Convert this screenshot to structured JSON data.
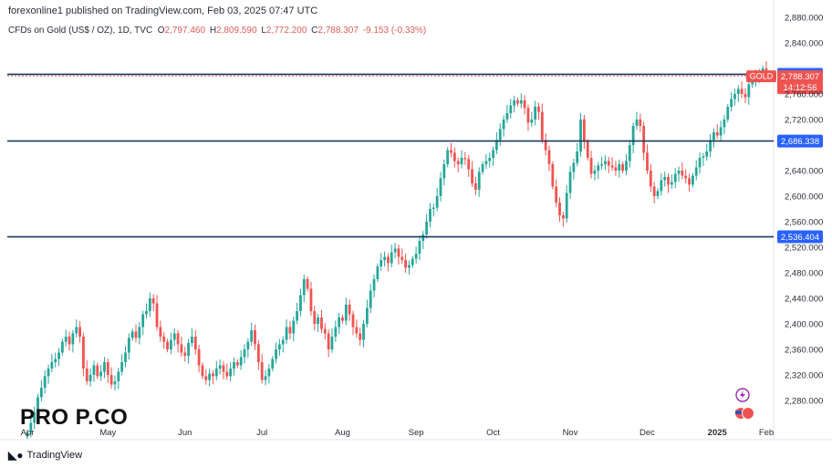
{
  "header": {
    "attribution": "forexonline1 published on TradingView.com, Feb 03, 2025 07:47 UTC"
  },
  "legend": {
    "symbol": "CFDs on Gold (US$ / OZ), 1D, TVC",
    "open_label": "O",
    "open": "2,797.460",
    "high_label": "H",
    "high": "2,809.590",
    "low_label": "L",
    "low": "2,772.200",
    "close_label": "C",
    "close": "2,788.307",
    "change": "-9.153 (-0.33%)"
  },
  "footer": {
    "logo_text": "TradingView",
    "brand_watermark": "PRO P.CO"
  },
  "colors": {
    "up": "#26a69a",
    "down": "#ef5350",
    "level_line": "#1e3a5f",
    "price_tag": "#ef5350",
    "level_tag": "#2962ff"
  },
  "chart_data": {
    "type": "candlestick",
    "instrument": "GOLD",
    "timeframe": "1D",
    "y_range": [
      2240,
      2880
    ],
    "y_ticks": [
      {
        "value": 2280,
        "label": "2,280.000"
      },
      {
        "value": 2320,
        "label": "2,320.000"
      },
      {
        "value": 2360,
        "label": "2,360.000"
      },
      {
        "value": 2400,
        "label": "2,400.000"
      },
      {
        "value": 2440,
        "label": "2,440.000"
      },
      {
        "value": 2480,
        "label": "2,480.000"
      },
      {
        "value": 2520,
        "label": "2,520.000"
      },
      {
        "value": 2560,
        "label": "2,560.000"
      },
      {
        "value": 2600,
        "label": "2,600.000"
      },
      {
        "value": 2640,
        "label": "2,640.000"
      },
      {
        "value": 2720,
        "label": "2,720.000"
      },
      {
        "value": 2760,
        "label": "2,760.000"
      },
      {
        "value": 2840,
        "label": "2,840.000"
      },
      {
        "value": 2880,
        "label": "2,880.000"
      }
    ],
    "x_labels": [
      {
        "label": "Apr",
        "bold": false
      },
      {
        "label": "May",
        "bold": false
      },
      {
        "label": "Jun",
        "bold": false
      },
      {
        "label": "Jul",
        "bold": false
      },
      {
        "label": "Aug",
        "bold": false
      },
      {
        "label": "Sep",
        "bold": false
      },
      {
        "label": "Oct",
        "bold": false
      },
      {
        "label": "Nov",
        "bold": false
      },
      {
        "label": "Dec",
        "bold": false
      },
      {
        "label": "2025",
        "bold": true
      },
      {
        "label": "Feb",
        "bold": false
      }
    ],
    "horizontal_levels": [
      {
        "value": 2790.769,
        "label": "2,790.769"
      },
      {
        "value": 2686.338,
        "label": "2,686.338"
      },
      {
        "value": 2536.404,
        "label": "2,536.404"
      }
    ],
    "last_price": {
      "symbol": "GOLD",
      "value": 2788.307,
      "label": "2,788.307",
      "countdown": "14:12:56"
    },
    "closes": [
      2230,
      2245,
      2262,
      2285,
      2300,
      2318,
      2330,
      2340,
      2345,
      2355,
      2372,
      2380,
      2368,
      2385,
      2395,
      2380,
      2330,
      2310,
      2320,
      2335,
      2318,
      2325,
      2340,
      2320,
      2305,
      2310,
      2325,
      2340,
      2355,
      2378,
      2388,
      2378,
      2395,
      2415,
      2420,
      2440,
      2432,
      2395,
      2380,
      2372,
      2360,
      2375,
      2385,
      2368,
      2355,
      2350,
      2370,
      2380,
      2360,
      2335,
      2318,
      2312,
      2322,
      2318,
      2330,
      2335,
      2325,
      2318,
      2330,
      2340,
      2335,
      2348,
      2360,
      2372,
      2390,
      2368,
      2340,
      2312,
      2318,
      2330,
      2345,
      2360,
      2368,
      2375,
      2395,
      2385,
      2405,
      2420,
      2445,
      2470,
      2455,
      2420,
      2400,
      2410,
      2392,
      2385,
      2360,
      2380,
      2395,
      2410,
      2405,
      2430,
      2415,
      2395,
      2385,
      2375,
      2400,
      2425,
      2452,
      2470,
      2490,
      2500,
      2505,
      2495,
      2512,
      2518,
      2505,
      2500,
      2488,
      2492,
      2502,
      2510,
      2530,
      2540,
      2560,
      2580,
      2582,
      2600,
      2628,
      2650,
      2672,
      2668,
      2655,
      2650,
      2660,
      2658,
      2642,
      2620,
      2610,
      2638,
      2650,
      2655,
      2660,
      2672,
      2688,
      2705,
      2720,
      2730,
      2742,
      2750,
      2745,
      2750,
      2738,
      2715,
      2720,
      2740,
      2732,
      2688,
      2672,
      2650,
      2615,
      2590,
      2570,
      2565,
      2605,
      2638,
      2652,
      2670,
      2720,
      2685,
      2660,
      2635,
      2640,
      2648,
      2650,
      2655,
      2648,
      2645,
      2640,
      2650,
      2640,
      2655,
      2680,
      2710,
      2720,
      2710,
      2668,
      2640,
      2615,
      2600,
      2608,
      2625,
      2630,
      2618,
      2622,
      2635,
      2640,
      2632,
      2628,
      2618,
      2632,
      2645,
      2660,
      2662,
      2670,
      2688,
      2700,
      2695,
      2708,
      2720,
      2740,
      2752,
      2760,
      2768,
      2760,
      2755,
      2775,
      2780,
      2788,
      2792,
      2800,
      2788
    ],
    "spread": 13
  }
}
